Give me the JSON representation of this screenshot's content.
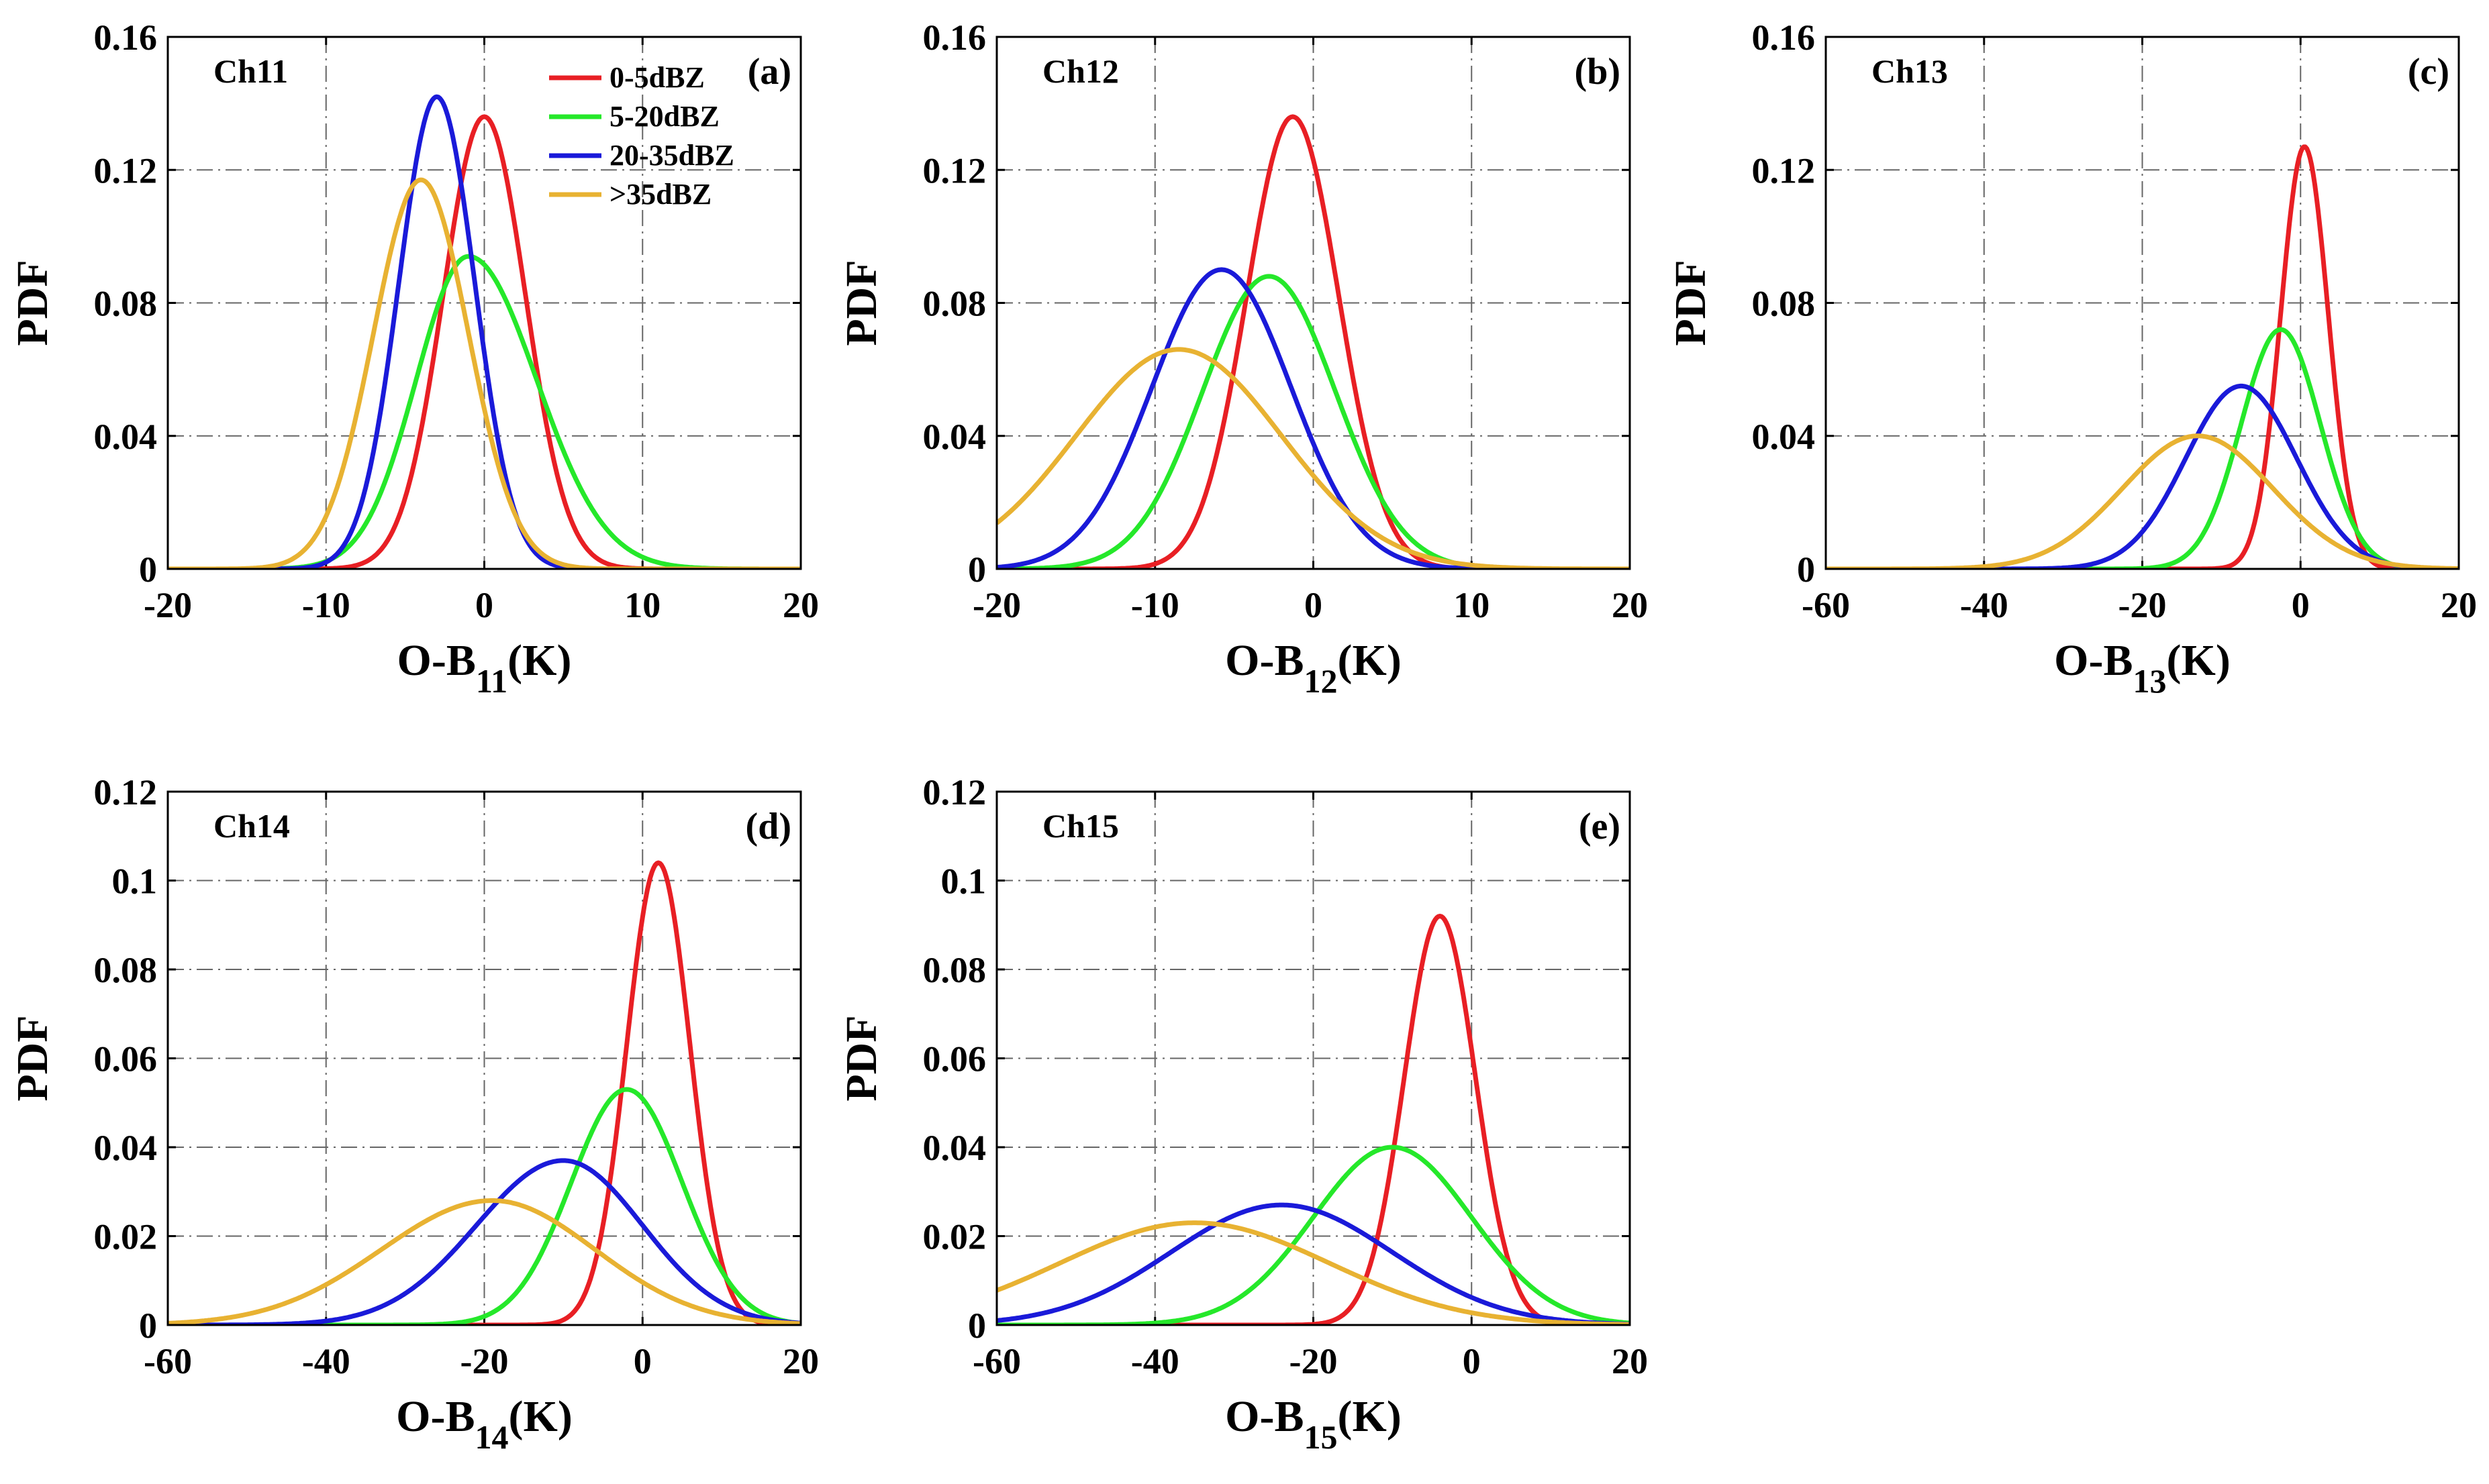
{
  "figure": {
    "ylabel": "PDF",
    "legend": [
      "0-5dBZ",
      "5-20dBZ",
      "20-35dBZ",
      ">35dBZ"
    ],
    "colors": [
      "#e81f24",
      "#25e82a",
      "#1a1ad9",
      "#e8b232"
    ]
  },
  "chart_data": [
    {
      "id": "a",
      "panel_tag": "(a)",
      "channel": "Ch11",
      "type": "line",
      "xlabel_main": "O-B",
      "xlabel_sub": "11",
      "xlabel_unit": "(K)",
      "ylabel": "PDF",
      "xlim": [
        -20,
        20
      ],
      "ylim": [
        0,
        0.16
      ],
      "xticks": [
        -20,
        -10,
        0,
        10,
        20
      ],
      "xtick_labels": [
        "-20",
        "-10",
        "0",
        "10",
        "20"
      ],
      "yticks": [
        0,
        0.04,
        0.08,
        0.12,
        0.16
      ],
      "ytick_labels": [
        "0",
        "0.04",
        "0.08",
        "0.12",
        "0.16"
      ],
      "grid": true,
      "legend_position": "top-right",
      "series": [
        {
          "name": "0-5dBZ",
          "peak_x": 0,
          "peak_pdf": 0.136
        },
        {
          "name": "5-20dBZ",
          "peak_x": -1,
          "peak_pdf": 0.094
        },
        {
          "name": "20-35dBZ",
          "peak_x": -3,
          "peak_pdf": 0.142
        },
        {
          "name": ">35dBZ",
          "peak_x": -4,
          "peak_pdf": 0.117
        }
      ]
    },
    {
      "id": "b",
      "panel_tag": "(b)",
      "channel": "Ch12",
      "type": "line",
      "xlabel_main": "O-B",
      "xlabel_sub": "12",
      "xlabel_unit": "(K)",
      "ylabel": "PDF",
      "xlim": [
        -20,
        20
      ],
      "ylim": [
        0,
        0.16
      ],
      "xticks": [
        -20,
        -10,
        0,
        10,
        20
      ],
      "xtick_labels": [
        "-20",
        "-10",
        "0",
        "10",
        "20"
      ],
      "yticks": [
        0,
        0.04,
        0.08,
        0.12,
        0.16
      ],
      "ytick_labels": [
        "0",
        "0.04",
        "0.08",
        "0.12",
        "0.16"
      ],
      "grid": true,
      "series": [
        {
          "name": "0-5dBZ",
          "peak_x": -1.3,
          "peak_pdf": 0.136
        },
        {
          "name": "5-20dBZ",
          "peak_x": -2.8,
          "peak_pdf": 0.088
        },
        {
          "name": "20-35dBZ",
          "peak_x": -5.8,
          "peak_pdf": 0.09
        },
        {
          "name": ">35dBZ",
          "peak_x": -8.5,
          "peak_pdf": 0.066
        }
      ]
    },
    {
      "id": "c",
      "panel_tag": "(c)",
      "channel": "Ch13",
      "type": "line",
      "xlabel_main": "O-B",
      "xlabel_sub": "13",
      "xlabel_unit": "(K)",
      "ylabel": "PDF",
      "xlim": [
        -60,
        20
      ],
      "ylim": [
        0,
        0.16
      ],
      "xticks": [
        -60,
        -40,
        -20,
        0,
        20
      ],
      "xtick_labels": [
        "-60",
        "-40",
        "-20",
        "0",
        "20"
      ],
      "yticks": [
        0,
        0.04,
        0.08,
        0.12,
        0.16
      ],
      "ytick_labels": [
        "0",
        "0.04",
        "0.08",
        "0.12",
        "0.16"
      ],
      "grid": true,
      "series": [
        {
          "name": "0-5dBZ",
          "peak_x": 0.5,
          "peak_pdf": 0.127
        },
        {
          "name": "5-20dBZ",
          "peak_x": -2.5,
          "peak_pdf": 0.072
        },
        {
          "name": "20-35dBZ",
          "peak_x": -7.5,
          "peak_pdf": 0.055
        },
        {
          "name": ">35dBZ",
          "peak_x": -13,
          "peak_pdf": 0.04
        }
      ]
    },
    {
      "id": "d",
      "panel_tag": "(d)",
      "channel": "Ch14",
      "type": "line",
      "xlabel_main": "O-B",
      "xlabel_sub": "14",
      "xlabel_unit": "(K)",
      "ylabel": "PDF",
      "xlim": [
        -60,
        20
      ],
      "ylim": [
        0,
        0.12
      ],
      "xticks": [
        -60,
        -40,
        -20,
        0,
        20
      ],
      "xtick_labels": [
        "-60",
        "-40",
        "-20",
        "0",
        "20"
      ],
      "yticks": [
        0,
        0.02,
        0.04,
        0.06,
        0.08,
        0.1,
        0.12
      ],
      "ytick_labels": [
        "0",
        "0.02",
        "0.04",
        "0.06",
        "0.08",
        "0.1",
        "0.12"
      ],
      "grid": true,
      "series": [
        {
          "name": "0-5dBZ",
          "peak_x": 2,
          "peak_pdf": 0.104
        },
        {
          "name": "5-20dBZ",
          "peak_x": -2,
          "peak_pdf": 0.053
        },
        {
          "name": "20-35dBZ",
          "peak_x": -10,
          "peak_pdf": 0.037
        },
        {
          "name": ">35dBZ",
          "peak_x": -19,
          "peak_pdf": 0.028
        }
      ]
    },
    {
      "id": "e",
      "panel_tag": "(e)",
      "channel": "Ch15",
      "type": "line",
      "xlabel_main": "O-B",
      "xlabel_sub": "15",
      "xlabel_unit": "(K)",
      "ylabel": "PDF",
      "xlim": [
        -60,
        20
      ],
      "ylim": [
        0,
        0.12
      ],
      "xticks": [
        -60,
        -40,
        -20,
        0,
        20
      ],
      "xtick_labels": [
        "-60",
        "-40",
        "-20",
        "0",
        "20"
      ],
      "yticks": [
        0,
        0.02,
        0.04,
        0.06,
        0.08,
        0.1,
        0.12
      ],
      "ytick_labels": [
        "0",
        "0.02",
        "0.04",
        "0.06",
        "0.08",
        "0.1",
        "0.12"
      ],
      "grid": true,
      "series": [
        {
          "name": "0-5dBZ",
          "peak_x": -4,
          "peak_pdf": 0.092
        },
        {
          "name": "5-20dBZ",
          "peak_x": -10,
          "peak_pdf": 0.04
        },
        {
          "name": "20-35dBZ",
          "peak_x": -24,
          "peak_pdf": 0.027
        },
        {
          "name": ">35dBZ",
          "peak_x": -35,
          "peak_pdf": 0.023
        }
      ]
    }
  ]
}
